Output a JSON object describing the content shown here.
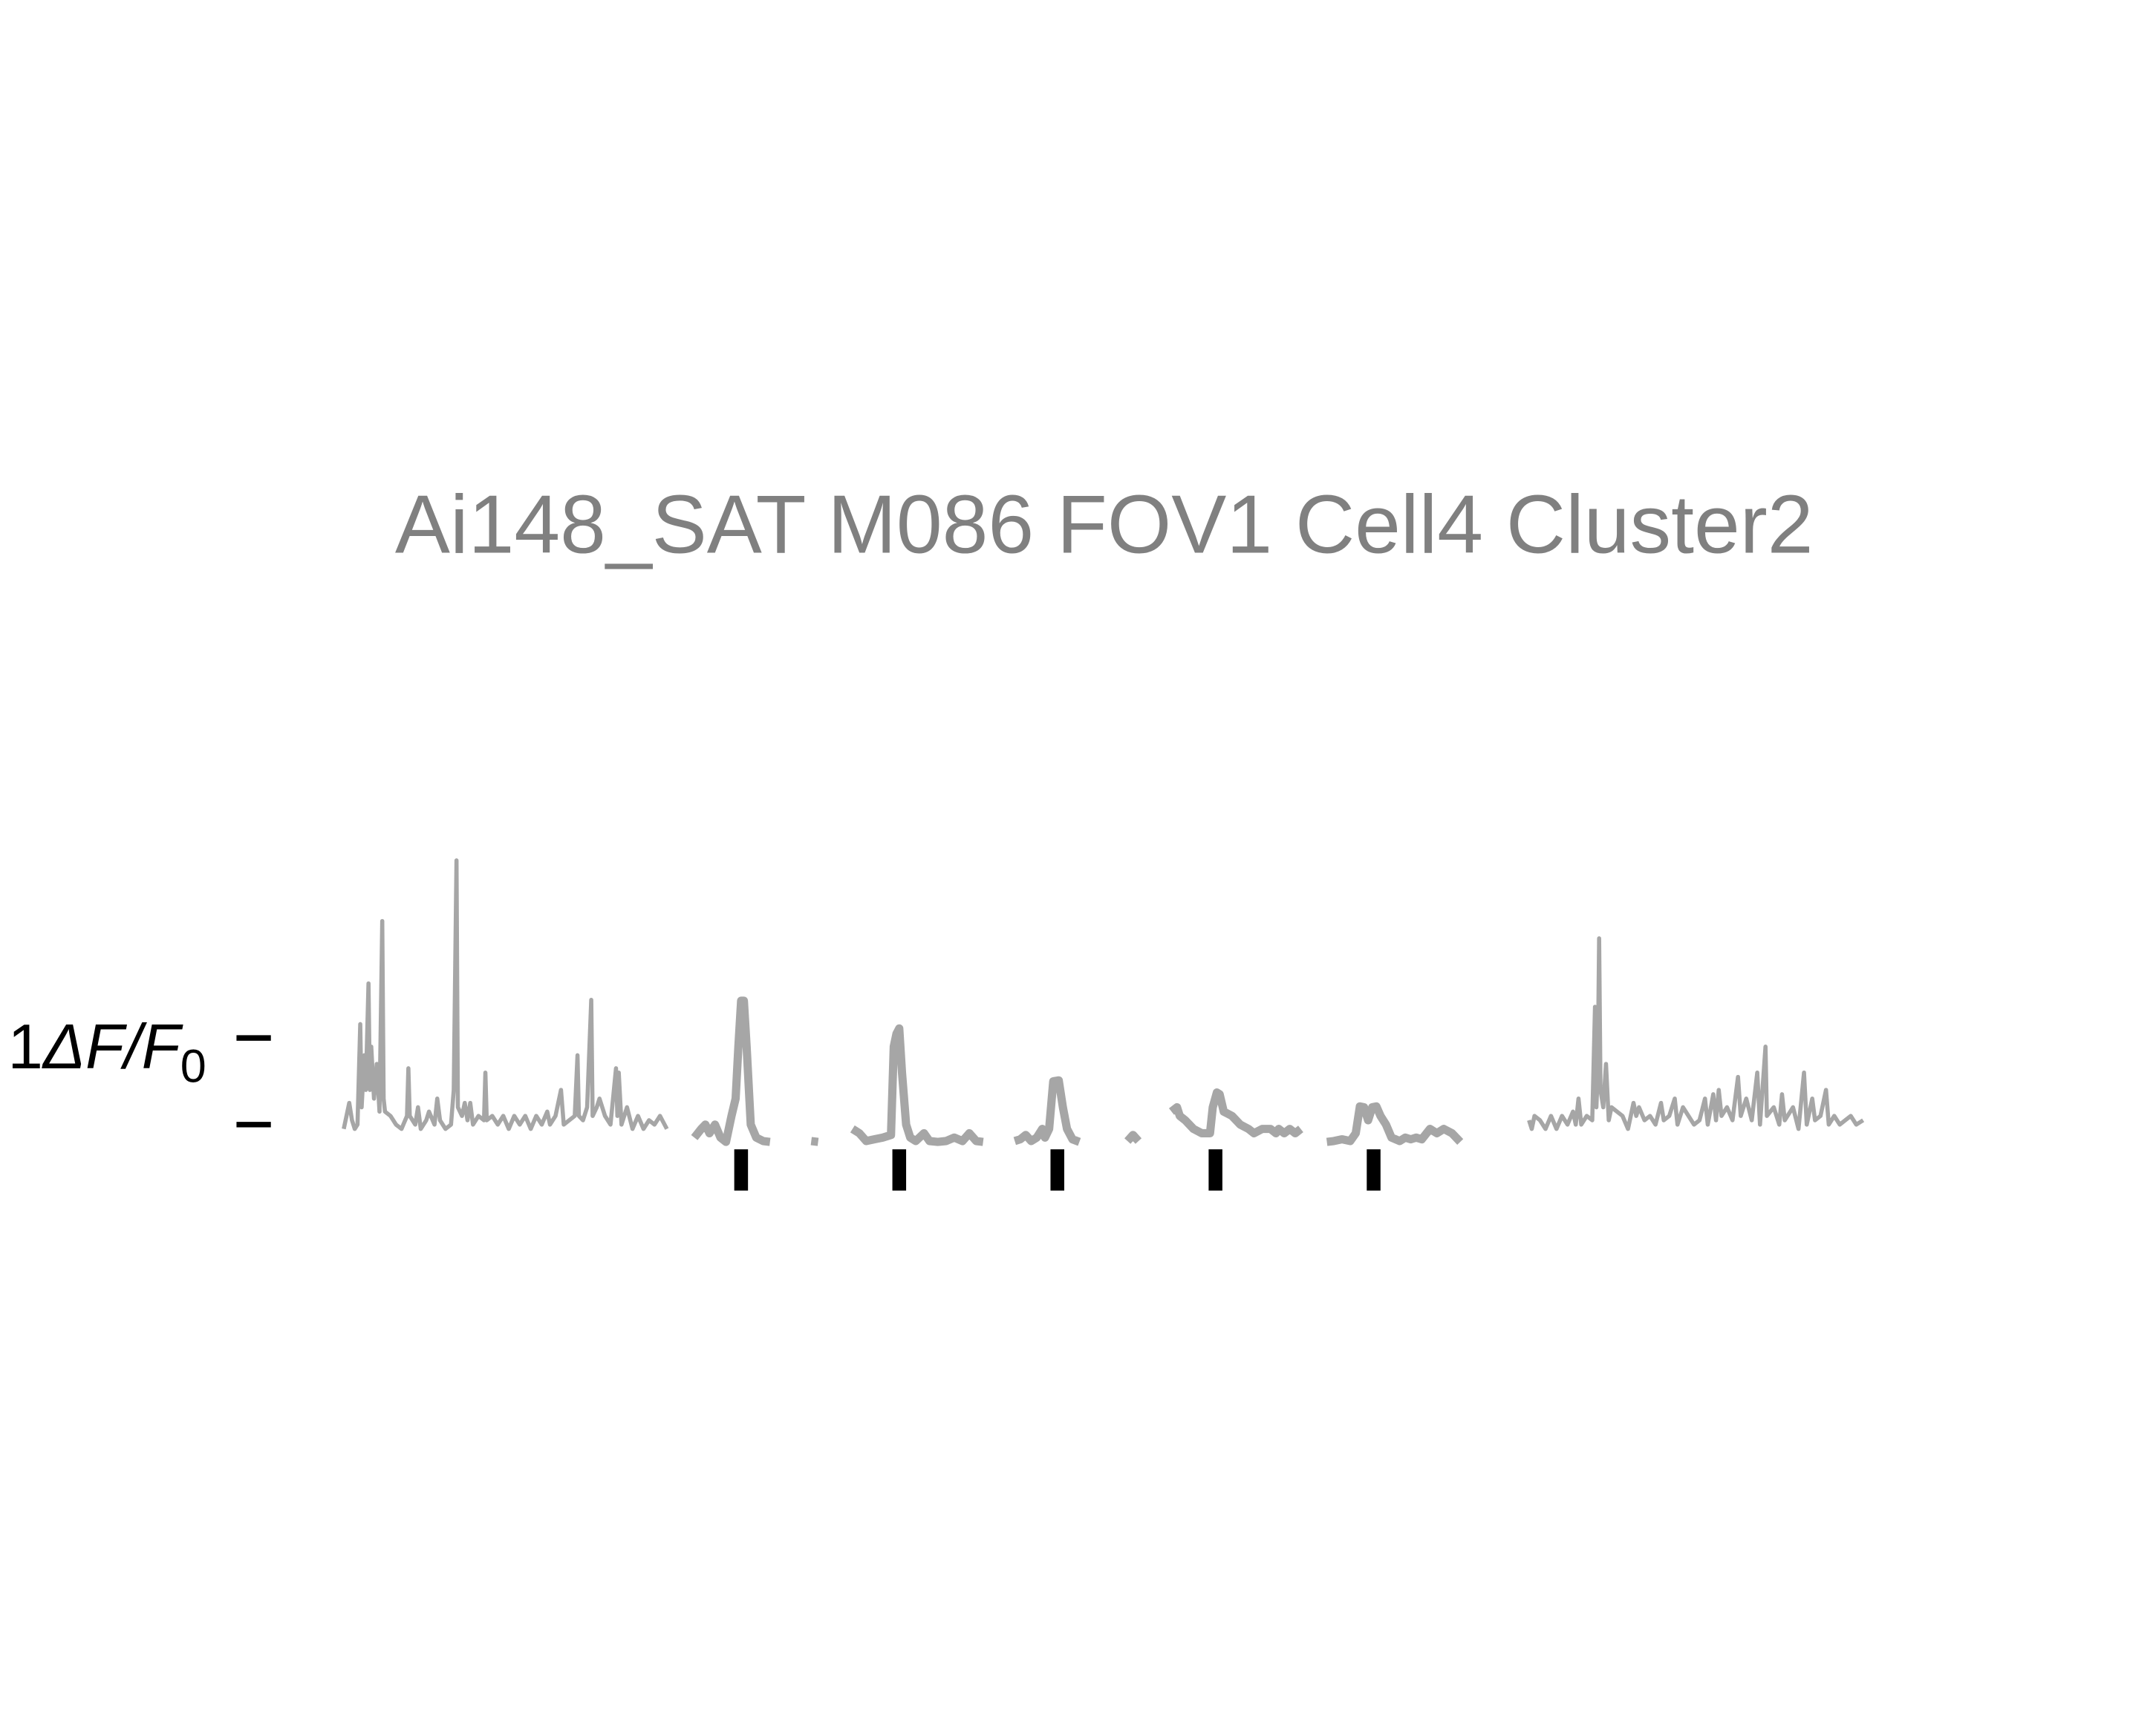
{
  "chart_data": {
    "type": "line",
    "title": "Ai148_SAT M086 FOV1 Cell4 Cluster2",
    "ylabel_parts": [
      "1",
      "ΔF/F",
      "0"
    ],
    "xlim": [
      0,
      1110
    ],
    "ylim": [
      -0.5,
      3.5
    ],
    "yticks": [
      0,
      1
    ],
    "series": [
      {
        "color": "#a6a6a6",
        "width": 3,
        "x": [
          0,
          2,
          4,
          6,
          8,
          10,
          12,
          13,
          15,
          16,
          18,
          19,
          20,
          22,
          24,
          26,
          28,
          29,
          30,
          34,
          38,
          42,
          46,
          47,
          48,
          52,
          54,
          56,
          60,
          62,
          66,
          68,
          70,
          74,
          78,
          80,
          82,
          83,
          86,
          88,
          90,
          92,
          94,
          98,
          102,
          103,
          104,
          108,
          112,
          116,
          120,
          124,
          128,
          132,
          136,
          140,
          144,
          148,
          150,
          154,
          158,
          160,
          164,
          168,
          170,
          171,
          174,
          177,
          180,
          181,
          184,
          186,
          190,
          194,
          198,
          199,
          200,
          202,
          206,
          210,
          214,
          218,
          222,
          226,
          230,
          235
        ],
        "values": [
          -0.05,
          0.1,
          0.25,
          0.05,
          -0.05,
          0.0,
          1.16,
          0.2,
          0.8,
          0.4,
          1.63,
          0.4,
          0.9,
          0.3,
          0.7,
          0.15,
          2.35,
          0.3,
          0.15,
          0.1,
          0.0,
          -0.05,
          0.1,
          0.65,
          0.1,
          0.0,
          0.2,
          -0.05,
          0.05,
          0.15,
          0.0,
          0.3,
          0.05,
          -0.05,
          0.0,
          0.4,
          3.05,
          0.2,
          0.1,
          0.25,
          0.05,
          0.25,
          0.0,
          0.1,
          0.05,
          0.6,
          0.05,
          0.1,
          0.0,
          0.1,
          -0.05,
          0.1,
          0.0,
          0.1,
          -0.05,
          0.1,
          0.0,
          0.15,
          0.0,
          0.1,
          0.4,
          0.0,
          0.05,
          0.1,
          0.8,
          0.1,
          0.05,
          0.2,
          1.44,
          0.1,
          0.2,
          0.3,
          0.1,
          0.0,
          0.65,
          0.1,
          0.6,
          0.0,
          0.2,
          -0.05,
          0.1,
          -0.05,
          0.05,
          0.0,
          0.1,
          -0.05
        ]
      },
      {
        "color": "#a6a6a6",
        "width": 6,
        "x": [
          255,
          260,
          263,
          266,
          270,
          274,
          278,
          282,
          285,
          287,
          289,
          291,
          293,
          296,
          300,
          305,
          310,
          315,
          340,
          345,
          350,
          370,
          375,
          380,
          386,
          392,
          398,
          400,
          402,
          404,
          406,
          409,
          412,
          416,
          422,
          426,
          432,
          438,
          444,
          450,
          455,
          460,
          465,
          470,
          488,
          492,
          496,
          500,
          504,
          508,
          510,
          513,
          516,
          520,
          523,
          526,
          530,
          535,
          540,
          570,
          574,
          578,
          582,
          602,
          606,
          608,
          612,
          618,
          624,
          630,
          632,
          635,
          637,
          640,
          646,
          652,
          658,
          662,
          668,
          674,
          678,
          680,
          684,
          688,
          692,
          696,
          700,
          715,
          720,
          726,
          732,
          736,
          739,
          742,
          745,
          748,
          751,
          754,
          758,
          762,
          768,
          772,
          776,
          780,
          784,
          790,
          795,
          800,
          806,
          812
        ],
        "values": [
          -0.15,
          -0.05,
          0.0,
          -0.1,
          0.0,
          -0.15,
          -0.2,
          0.1,
          0.3,
          0.9,
          1.43,
          1.43,
          0.9,
          0.0,
          -0.15,
          -0.19,
          -0.2,
          null,
          -0.19,
          -0.2,
          null,
          -0.05,
          -0.1,
          -0.19,
          -0.17,
          -0.15,
          -0.12,
          0.9,
          1.05,
          1.11,
          0.6,
          0.0,
          -0.15,
          -0.19,
          -0.1,
          -0.19,
          -0.2,
          -0.19,
          -0.15,
          -0.19,
          -0.1,
          -0.19,
          -0.2,
          null,
          -0.19,
          -0.17,
          -0.12,
          -0.19,
          -0.15,
          -0.05,
          -0.15,
          -0.05,
          0.5,
          0.51,
          0.2,
          -0.05,
          -0.17,
          -0.2,
          null,
          -0.19,
          -0.12,
          -0.19,
          null,
          0.15,
          0.2,
          0.1,
          0.05,
          -0.05,
          -0.1,
          -0.1,
          0.2,
          0.37,
          0.35,
          0.15,
          0.1,
          0.0,
          -0.05,
          -0.1,
          -0.05,
          -0.05,
          -0.1,
          -0.05,
          -0.1,
          -0.05,
          -0.1,
          -0.05,
          null,
          -0.2,
          -0.19,
          -0.17,
          -0.19,
          -0.1,
          0.21,
          0.2,
          0.05,
          0.2,
          0.21,
          0.1,
          0.0,
          -0.15,
          -0.19,
          -0.15,
          -0.17,
          -0.15,
          -0.17,
          -0.05,
          -0.1,
          -0.05,
          -0.1,
          -0.2
        ]
      },
      {
        "color": "#a6a6a6",
        "width": 3,
        "x": [
          862,
          864,
          866,
          870,
          874,
          878,
          882,
          886,
          890,
          894,
          896,
          898,
          900,
          904,
          908,
          910,
          911,
          912,
          913,
          914,
          916,
          918,
          920,
          922,
          926,
          930,
          934,
          938,
          940,
          942,
          946,
          950,
          954,
          958,
          960,
          964,
          968,
          970,
          974,
          978,
          982,
          986,
          990,
          992,
          996,
          998,
          1000,
          1002,
          1006,
          1010,
          1014,
          1016,
          1020,
          1024,
          1028,
          1030,
          1034,
          1035,
          1040,
          1044,
          1046,
          1048,
          1054,
          1058,
          1062,
          1064,
          1068,
          1070,
          1074,
          1078,
          1080,
          1084,
          1088,
          1092,
          1096,
          1100,
          1105
        ],
        "values": [
          0.05,
          -0.05,
          0.1,
          0.05,
          -0.05,
          0.1,
          -0.05,
          0.1,
          0.0,
          0.15,
          0.0,
          0.3,
          0.0,
          0.1,
          0.05,
          1.36,
          0.2,
          0.6,
          2.15,
          0.4,
          0.2,
          0.7,
          0.05,
          0.2,
          0.15,
          0.1,
          -0.05,
          0.25,
          0.1,
          0.2,
          0.05,
          0.1,
          0.0,
          0.25,
          0.05,
          0.1,
          0.3,
          0.0,
          0.2,
          0.1,
          0.0,
          0.05,
          0.3,
          0.0,
          0.35,
          0.05,
          0.4,
          0.1,
          0.2,
          0.05,
          0.55,
          0.1,
          0.3,
          0.05,
          0.6,
          0.0,
          0.9,
          0.1,
          0.2,
          0.0,
          0.35,
          0.05,
          0.2,
          -0.05,
          0.6,
          0.0,
          0.3,
          0.05,
          0.1,
          0.4,
          0.0,
          0.1,
          0.0,
          0.05,
          0.1,
          0.0,
          0.05
        ]
      }
    ],
    "event_x": [
      289,
      404,
      519,
      634,
      749
    ],
    "event_color": "#000000"
  }
}
